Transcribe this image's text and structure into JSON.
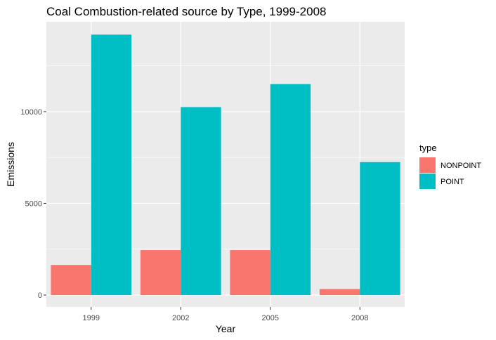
{
  "chart_data": {
    "type": "bar",
    "title": "Coal Combustion-related source by Type, 1999-2008",
    "xlabel": "Year",
    "ylabel": "Emissions",
    "categories": [
      "1999",
      "2002",
      "2005",
      "2008"
    ],
    "series": [
      {
        "name": "NONPOINT",
        "color": "#F8766D",
        "values": [
          1640,
          2450,
          2450,
          330
        ]
      },
      {
        "name": "POINT",
        "color": "#00BFC4",
        "values": [
          14200,
          10250,
          11500,
          7250
        ]
      }
    ],
    "ylim": [
      -650,
      14900
    ],
    "yticks": [
      0,
      5000,
      10000
    ],
    "ytick_labels": [
      "0",
      "5000",
      "10000"
    ],
    "legend": {
      "title": "type",
      "position": "right"
    },
    "grid": true,
    "panel_background": "#EBEBEB"
  }
}
